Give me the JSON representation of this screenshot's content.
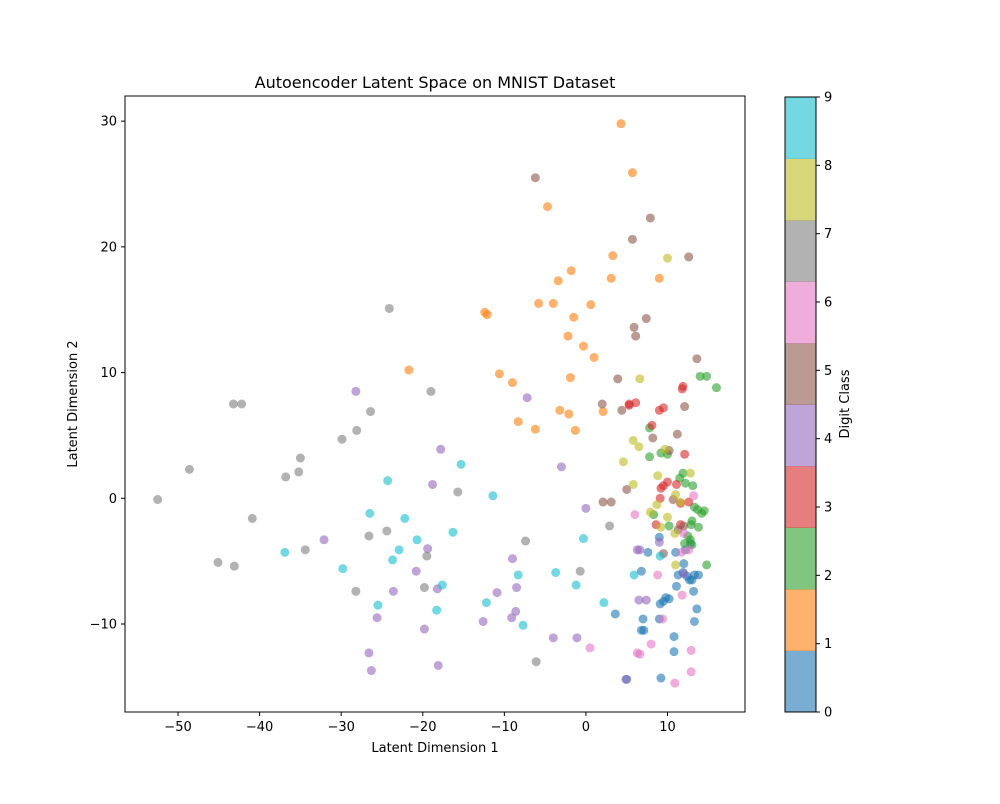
{
  "chart_data": {
    "type": "scatter",
    "title": "Autoencoder Latent Space on MNIST Dataset",
    "xlabel": "Latent Dimension 1",
    "ylabel": "Latent Dimension 2",
    "xlim": [
      -56.5,
      19.5
    ],
    "ylim": [
      -17,
      32
    ],
    "x_ticks": [
      -50,
      -40,
      -30,
      -20,
      -10,
      0,
      10
    ],
    "y_ticks": [
      -10,
      0,
      10,
      20,
      30
    ],
    "grid": false,
    "marker_alpha": 0.6,
    "colorbar": {
      "label": "Digit Class",
      "range": [
        0,
        9
      ],
      "ticks": [
        0,
        1,
        2,
        3,
        4,
        5,
        6,
        7,
        8,
        9
      ],
      "colors": [
        "#1f77b4",
        "#ff7f0e",
        "#2ca02c",
        "#d62728",
        "#9467bd",
        "#8c564b",
        "#e377c2",
        "#7f7f7f",
        "#bcbd22",
        "#17becf"
      ]
    },
    "series": [
      {
        "class": 0,
        "points": [
          [
            5.0,
            -14.4
          ],
          [
            9.2,
            -14.3
          ],
          [
            10.8,
            -12.2
          ],
          [
            10.8,
            -11.0
          ],
          [
            7.1,
            -10.5
          ],
          [
            6.8,
            -10.5
          ],
          [
            7.0,
            -9.6
          ],
          [
            9.0,
            -9.6
          ],
          [
            13.3,
            -9.8
          ],
          [
            3.6,
            -9.2
          ],
          [
            9.1,
            -8.4
          ],
          [
            9.5,
            -8.2
          ],
          [
            13.6,
            -8.8
          ],
          [
            9.8,
            -7.9
          ],
          [
            10.2,
            -8.0
          ],
          [
            13.2,
            -7.4
          ],
          [
            11.1,
            -7.0
          ],
          [
            6.8,
            -5.8
          ],
          [
            11.9,
            -5.9
          ],
          [
            12.7,
            -6.5
          ],
          [
            13.0,
            -6.5
          ],
          [
            13.3,
            -6.1
          ],
          [
            11.3,
            -6.1
          ],
          [
            12.4,
            -6.2
          ],
          [
            13.8,
            -6.1
          ],
          [
            12.0,
            -5.2
          ],
          [
            7.6,
            -4.3
          ],
          [
            11.0,
            -4.3
          ],
          [
            9.0,
            -3.1
          ],
          [
            12.2,
            -4.1
          ],
          [
            12.8,
            -3.6
          ]
        ]
      },
      {
        "class": 1,
        "points": [
          [
            4.3,
            29.8
          ],
          [
            5.7,
            25.9
          ],
          [
            -4.7,
            23.2
          ],
          [
            -1.8,
            18.1
          ],
          [
            3.3,
            19.3
          ],
          [
            -3.4,
            17.3
          ],
          [
            3.1,
            17.5
          ],
          [
            9.0,
            17.5
          ],
          [
            -12.4,
            14.8
          ],
          [
            -12.1,
            14.6
          ],
          [
            -5.8,
            15.5
          ],
          [
            -4.0,
            15.5
          ],
          [
            0.6,
            15.4
          ],
          [
            -1.5,
            14.4
          ],
          [
            -2.2,
            12.9
          ],
          [
            -0.3,
            12.1
          ],
          [
            1.0,
            11.2
          ],
          [
            -21.7,
            10.2
          ],
          [
            -10.6,
            9.9
          ],
          [
            -1.9,
            9.6
          ],
          [
            -9.0,
            9.2
          ],
          [
            -8.3,
            6.1
          ],
          [
            -6.2,
            5.5
          ],
          [
            -3.2,
            7.0
          ],
          [
            -2.1,
            6.7
          ],
          [
            2.1,
            6.9
          ],
          [
            -1.3,
            5.4
          ]
        ]
      },
      {
        "class": 2,
        "points": [
          [
            16.0,
            8.8
          ],
          [
            14.8,
            9.7
          ],
          [
            14.0,
            9.7
          ],
          [
            7.8,
            5.6
          ],
          [
            7.8,
            3.3
          ],
          [
            9.2,
            3.6
          ],
          [
            10.0,
            3.5
          ],
          [
            11.9,
            2.0
          ],
          [
            11.5,
            1.6
          ],
          [
            13.1,
            1.0
          ],
          [
            12.2,
            1.2
          ],
          [
            13.3,
            -0.7
          ],
          [
            13.7,
            -0.9
          ],
          [
            14.5,
            -1.0
          ],
          [
            14.2,
            -1.2
          ],
          [
            13.0,
            -1.8
          ],
          [
            12.9,
            -2.1
          ],
          [
            13.8,
            -2.3
          ],
          [
            12.5,
            -3.0
          ],
          [
            12.8,
            -3.3
          ],
          [
            13.0,
            -3.7
          ],
          [
            12.1,
            -3.6
          ],
          [
            14.8,
            -5.3
          ],
          [
            10.2,
            -2.2
          ],
          [
            8.3,
            -1.3
          ]
        ]
      },
      {
        "class": 3,
        "points": [
          [
            5.3,
            7.5
          ],
          [
            5.3,
            7.4
          ],
          [
            6.1,
            7.6
          ],
          [
            9.0,
            7.0
          ],
          [
            9.5,
            7.2
          ],
          [
            11.9,
            8.9
          ],
          [
            11.8,
            8.7
          ],
          [
            8.1,
            5.8
          ],
          [
            12.1,
            3.5
          ],
          [
            10.0,
            1.3
          ],
          [
            9.5,
            1.0
          ],
          [
            9.2,
            0.8
          ],
          [
            11.1,
            1.1
          ],
          [
            12.6,
            -0.3
          ],
          [
            11.6,
            -0.4
          ],
          [
            9.1,
            0.0
          ],
          [
            8.6,
            -2.1
          ],
          [
            11.6,
            -2.1
          ]
        ]
      },
      {
        "class": 4,
        "points": [
          [
            -28.2,
            8.5
          ],
          [
            -7.2,
            8.0
          ],
          [
            -17.8,
            3.9
          ],
          [
            -3.0,
            2.5
          ],
          [
            -18.8,
            1.1
          ],
          [
            0.0,
            -0.8
          ],
          [
            -32.1,
            -3.3
          ],
          [
            -19.4,
            -4.0
          ],
          [
            -9.0,
            -4.8
          ],
          [
            -20.8,
            -5.8
          ],
          [
            -8.5,
            -7.1
          ],
          [
            -18.2,
            -7.2
          ],
          [
            -23.6,
            -7.4
          ],
          [
            -10.9,
            -7.5
          ],
          [
            6.3,
            -4.1
          ],
          [
            6.6,
            -4.1
          ],
          [
            6.5,
            -8.1
          ],
          [
            7.4,
            -8.1
          ],
          [
            -8.6,
            -9.0
          ],
          [
            -25.6,
            -9.5
          ],
          [
            -9.1,
            -9.5
          ],
          [
            -12.6,
            -9.8
          ],
          [
            -19.8,
            -10.4
          ],
          [
            -4.0,
            -11.1
          ],
          [
            -1.1,
            -11.1
          ],
          [
            -26.6,
            -12.3
          ],
          [
            -18.1,
            -13.3
          ],
          [
            -26.3,
            -13.7
          ],
          [
            4.9,
            -14.4
          ],
          [
            -9.0,
            -17.1
          ],
          [
            9.0,
            -3.5
          ],
          [
            12.0,
            -6.0
          ]
        ]
      },
      {
        "class": 5,
        "points": [
          [
            -6.2,
            25.5
          ],
          [
            7.9,
            22.3
          ],
          [
            5.7,
            20.6
          ],
          [
            12.6,
            19.2
          ],
          [
            7.4,
            14.3
          ],
          [
            5.9,
            13.6
          ],
          [
            6.1,
            12.9
          ],
          [
            13.6,
            11.1
          ],
          [
            3.9,
            9.5
          ],
          [
            2.0,
            7.5
          ],
          [
            4.4,
            7.0
          ],
          [
            12.1,
            7.3
          ],
          [
            11.2,
            5.1
          ],
          [
            8.2,
            4.8
          ],
          [
            10.2,
            3.8
          ],
          [
            9.5,
            -4.4
          ],
          [
            5.0,
            0.7
          ],
          [
            2.1,
            -0.3
          ],
          [
            3.1,
            -0.3
          ],
          [
            11.3,
            -2.5
          ],
          [
            12.0,
            -2.2
          ],
          [
            10.7,
            -0.1
          ]
        ]
      },
      {
        "class": 6,
        "points": [
          [
            6.0,
            -1.3
          ],
          [
            8.8,
            -6.1
          ],
          [
            11.7,
            -4.3
          ],
          [
            12.6,
            -4.1
          ],
          [
            13.2,
            0.2
          ],
          [
            12.0,
            -2.8
          ],
          [
            8.0,
            -11.6
          ],
          [
            9.4,
            -9.6
          ],
          [
            11.8,
            -7.7
          ],
          [
            12.9,
            -12.1
          ],
          [
            6.3,
            -12.3
          ],
          [
            6.6,
            -12.4
          ],
          [
            0.5,
            -11.9
          ],
          [
            12.9,
            -13.8
          ],
          [
            10.9,
            -14.7
          ]
        ]
      },
      {
        "class": 7,
        "points": [
          [
            -52.5,
            -0.1
          ],
          [
            -48.6,
            2.3
          ],
          [
            -43.2,
            7.5
          ],
          [
            -42.2,
            7.5
          ],
          [
            -24.1,
            15.1
          ],
          [
            -26.4,
            6.9
          ],
          [
            -28.1,
            5.4
          ],
          [
            -29.9,
            4.7
          ],
          [
            -35.0,
            3.2
          ],
          [
            -35.2,
            2.1
          ],
          [
            -36.8,
            1.7
          ],
          [
            -40.9,
            -1.6
          ],
          [
            -19.0,
            8.5
          ],
          [
            -15.7,
            0.5
          ],
          [
            -24.4,
            -2.6
          ],
          [
            -26.6,
            -3.0
          ],
          [
            -45.1,
            -5.1
          ],
          [
            -43.1,
            -5.4
          ],
          [
            -19.5,
            -4.6
          ],
          [
            -7.4,
            -3.4
          ],
          [
            -28.2,
            -7.4
          ],
          [
            -19.8,
            -7.1
          ],
          [
            -0.7,
            -5.8
          ],
          [
            2.9,
            -2.2
          ],
          [
            -6.1,
            -13.0
          ],
          [
            -34.4,
            -4.1
          ]
        ]
      },
      {
        "class": 8,
        "points": [
          [
            10.0,
            19.1
          ],
          [
            6.6,
            9.5
          ],
          [
            5.8,
            4.6
          ],
          [
            6.5,
            4.1
          ],
          [
            4.6,
            2.9
          ],
          [
            9.7,
            3.9
          ],
          [
            12.8,
            2.0
          ],
          [
            8.8,
            1.8
          ],
          [
            11.0,
            0.3
          ],
          [
            5.8,
            1.1
          ],
          [
            7.9,
            -1.1
          ],
          [
            10.0,
            -1.5
          ],
          [
            9.2,
            -2.3
          ],
          [
            10.9,
            -2.8
          ],
          [
            11.0,
            -5.3
          ],
          [
            8.7,
            -0.5
          ],
          [
            11.6,
            -0.3
          ]
        ]
      },
      {
        "class": 9,
        "points": [
          [
            -15.3,
            2.7
          ],
          [
            -24.3,
            1.4
          ],
          [
            -11.4,
            0.2
          ],
          [
            -26.5,
            -1.2
          ],
          [
            -22.2,
            -1.6
          ],
          [
            -20.7,
            -3.3
          ],
          [
            -16.3,
            -2.7
          ],
          [
            -0.3,
            -3.2
          ],
          [
            -22.9,
            -4.1
          ],
          [
            -23.7,
            -4.9
          ],
          [
            -36.9,
            -4.3
          ],
          [
            -29.8,
            -5.6
          ],
          [
            -3.7,
            -5.9
          ],
          [
            -8.3,
            -6.1
          ],
          [
            -17.6,
            -6.9
          ],
          [
            -1.2,
            -6.9
          ],
          [
            -25.5,
            -8.5
          ],
          [
            -12.2,
            -8.3
          ],
          [
            2.2,
            -8.3
          ],
          [
            -18.3,
            -8.9
          ],
          [
            -7.7,
            -10.1
          ],
          [
            5.9,
            -6.1
          ],
          [
            9.1,
            -4.6
          ]
        ]
      }
    ]
  }
}
